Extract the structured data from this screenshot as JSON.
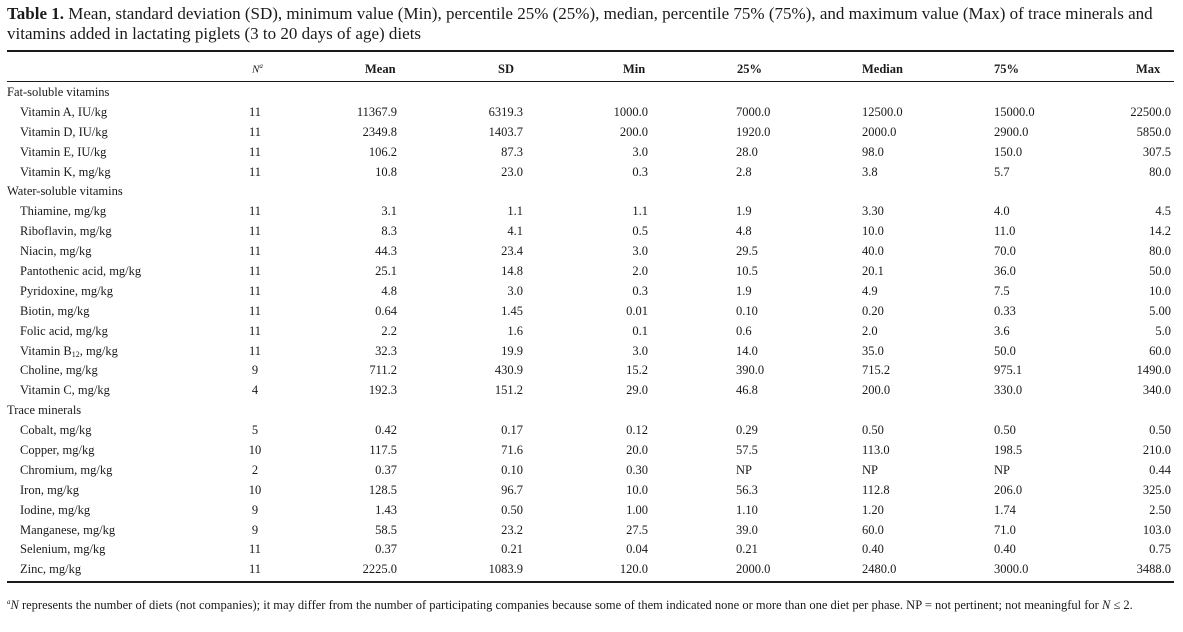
{
  "caption": {
    "label": "Table 1.",
    "text": " Mean, standard deviation (SD), minimum value (Min), percentile 25% (25%), median, percentile 75% (75%), and maximum value (Max) of trace minerals and vitamins added in lactating piglets (3 to 20 days of age) diets"
  },
  "headers": {
    "n": "N",
    "n_sup": "a",
    "mean": "Mean",
    "sd": "SD",
    "min": "Min",
    "p25": "25%",
    "median": "Median",
    "p75": "75%",
    "max": "Max"
  },
  "sections": {
    "fat": "Fat-soluble vitamins",
    "water": "Water-soluble vitamins",
    "trace": "Trace minerals"
  },
  "rows": {
    "vit_a": {
      "name": "Vitamin A, IU/kg",
      "n": "11",
      "mean": "11367.9",
      "sd": "6319.3",
      "min": "1000.0",
      "p25": "7000.0",
      "median": "12500.0",
      "p75": "15000.0",
      "max": "22500.0"
    },
    "vit_d": {
      "name": "Vitamin D, IU/kg",
      "n": "11",
      "mean": "2349.8",
      "sd": "1403.7",
      "min": "200.0",
      "p25": "1920.0",
      "median": "2000.0",
      "p75": "2900.0",
      "max": "5850.0"
    },
    "vit_e": {
      "name": "Vitamin E, IU/kg",
      "n": "11",
      "mean": "106.2",
      "sd": "87.3",
      "min": "3.0",
      "p25": "28.0",
      "median": "98.0",
      "p75": "150.0",
      "max": "307.5"
    },
    "vit_k": {
      "name": "Vitamin K, mg/kg",
      "n": "11",
      "mean": "10.8",
      "sd": "23.0",
      "min": "0.3",
      "p25": "2.8",
      "median": "3.8",
      "p75": "5.7",
      "max": "80.0"
    },
    "thiamine": {
      "name": "Thiamine, mg/kg",
      "n": "11",
      "mean": "3.1",
      "sd": "1.1",
      "min": "1.1",
      "p25": "1.9",
      "median": "3.30",
      "p75": "4.0",
      "max": "4.5"
    },
    "riboflavin": {
      "name": "Riboflavin, mg/kg",
      "n": "11",
      "mean": "8.3",
      "sd": "4.1",
      "min": "0.5",
      "p25": "4.8",
      "median": "10.0",
      "p75": "11.0",
      "max": "14.2"
    },
    "niacin": {
      "name": "Niacin, mg/kg",
      "n": "11",
      "mean": "44.3",
      "sd": "23.4",
      "min": "3.0",
      "p25": "29.5",
      "median": "40.0",
      "p75": "70.0",
      "max": "80.0"
    },
    "pantothenic": {
      "name": "Pantothenic acid, mg/kg",
      "n": "11",
      "mean": "25.1",
      "sd": "14.8",
      "min": "2.0",
      "p25": "10.5",
      "median": "20.1",
      "p75": "36.0",
      "max": "50.0"
    },
    "pyridoxine": {
      "name": "Pyridoxine, mg/kg",
      "n": "11",
      "mean": "4.8",
      "sd": "3.0",
      "min": "0.3",
      "p25": "1.9",
      "median": "4.9",
      "p75": "7.5",
      "max": "10.0"
    },
    "biotin": {
      "name": "Biotin, mg/kg",
      "n": "11",
      "mean": "0.64",
      "sd": "1.45",
      "min": "0.01",
      "p25": "0.10",
      "median": "0.20",
      "p75": "0.33",
      "max": "5.00"
    },
    "folic": {
      "name": "Folic acid, mg/kg",
      "n": "11",
      "mean": "2.2",
      "sd": "1.6",
      "min": "0.1",
      "p25": "0.6",
      "median": "2.0",
      "p75": "3.6",
      "max": "5.0"
    },
    "vit_b12": {
      "name_pre": "Vitamin B",
      "name_sub": "12",
      "name_post": ", mg/kg",
      "n": "11",
      "mean": "32.3",
      "sd": "19.9",
      "min": "3.0",
      "p25": "14.0",
      "median": "35.0",
      "p75": "50.0",
      "max": "60.0"
    },
    "choline": {
      "name": "Choline, mg/kg",
      "n": "9",
      "mean": "711.2",
      "sd": "430.9",
      "min": "15.2",
      "p25": "390.0",
      "median": "715.2",
      "p75": "975.1",
      "max": "1490.0"
    },
    "vit_c": {
      "name": "Vitamin C, mg/kg",
      "n": "4",
      "mean": "192.3",
      "sd": "151.2",
      "min": "29.0",
      "p25": "46.8",
      "median": "200.0",
      "p75": "330.0",
      "max": "340.0"
    },
    "cobalt": {
      "name": "Cobalt, mg/kg",
      "n": "5",
      "mean": "0.42",
      "sd": "0.17",
      "min": "0.12",
      "p25": "0.29",
      "median": "0.50",
      "p75": "0.50",
      "max": "0.50"
    },
    "copper": {
      "name": "Copper, mg/kg",
      "n": "10",
      "mean": "117.5",
      "sd": "71.6",
      "min": "20.0",
      "p25": "57.5",
      "median": "113.0",
      "p75": "198.5",
      "max": "210.0"
    },
    "chromium": {
      "name": "Chromium, mg/kg",
      "n": "2",
      "mean": "0.37",
      "sd": "0.10",
      "min": "0.30",
      "p25": "NP",
      "median": "NP",
      "p75": "NP",
      "max": "0.44"
    },
    "iron": {
      "name": "Iron, mg/kg",
      "n": "10",
      "mean": "128.5",
      "sd": "96.7",
      "min": "10.0",
      "p25": "56.3",
      "median": "112.8",
      "p75": "206.0",
      "max": "325.0"
    },
    "iodine": {
      "name": "Iodine, mg/kg",
      "n": "9",
      "mean": "1.43",
      "sd": "0.50",
      "min": "1.00",
      "p25": "1.10",
      "median": "1.20",
      "p75": "1.74",
      "max": "2.50"
    },
    "manganese": {
      "name": "Manganese, mg/kg",
      "n": "9",
      "mean": "58.5",
      "sd": "23.2",
      "min": "27.5",
      "p25": "39.0",
      "median": "60.0",
      "p75": "71.0",
      "max": "103.0"
    },
    "selenium": {
      "name": "Selenium, mg/kg",
      "n": "11",
      "mean": "0.37",
      "sd": "0.21",
      "min": "0.04",
      "p25": "0.21",
      "median": "0.40",
      "p75": "0.40",
      "max": "0.75"
    },
    "zinc": {
      "name": "Zinc, mg/kg",
      "n": "11",
      "mean": "2225.0",
      "sd": "1083.9",
      "min": "120.0",
      "p25": "2000.0",
      "median": "2480.0",
      "p75": "3000.0",
      "max": "3488.0"
    }
  },
  "footnote": {
    "sup": "a",
    "n1": "N",
    "text1": " represents the number of diets (not companies); it may differ from the number of participating companies because some of them indicated none or more than one diet per phase. NP = not pertinent; not meaningful for ",
    "n2": "N",
    "text2": " ≤ 2."
  }
}
